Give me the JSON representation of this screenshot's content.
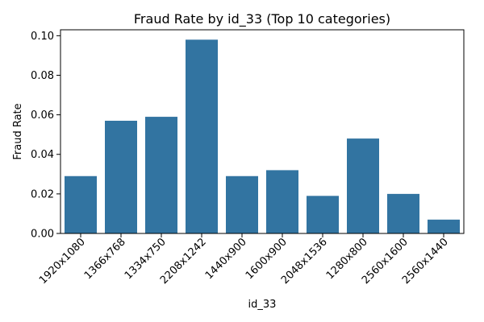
{
  "chart_data": {
    "type": "bar",
    "title": "Fraud Rate by id_33 (Top 10 categories)",
    "xlabel": "id_33",
    "ylabel": "Fraud Rate",
    "categories": [
      "1920x1080",
      "1366x768",
      "1334x750",
      "2208x1242",
      "1440x900",
      "1600x900",
      "2048x1536",
      "1280x800",
      "2560x1600",
      "2560x1440"
    ],
    "values": [
      0.029,
      0.057,
      0.059,
      0.098,
      0.029,
      0.032,
      0.019,
      0.048,
      0.02,
      0.007
    ],
    "ylim": [
      0,
      0.103
    ],
    "yticks": [
      "0.00",
      "0.02",
      "0.04",
      "0.06",
      "0.08",
      "0.10"
    ],
    "bar_color": "#3274a1",
    "grid": false,
    "legend": "none"
  }
}
